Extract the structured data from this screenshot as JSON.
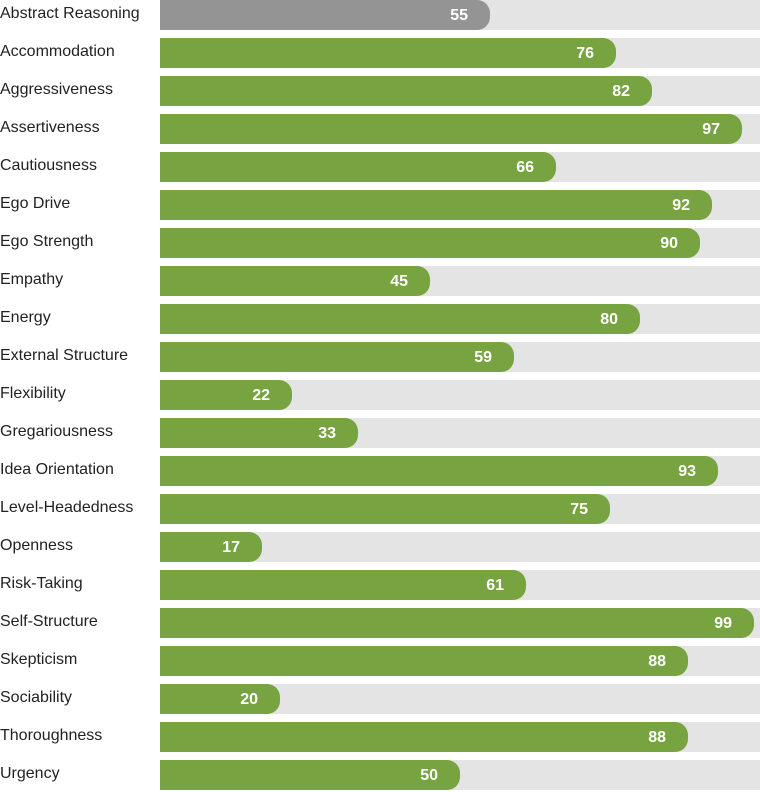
{
  "chart_data": {
    "type": "bar",
    "orientation": "horizontal",
    "categories": [
      "Abstract Reasoning",
      "Accommodation",
      "Aggressiveness",
      "Assertiveness",
      "Cautiousness",
      "Ego Drive",
      "Ego Strength",
      "Empathy",
      "Energy",
      "External Structure",
      "Flexibility",
      "Gregariousness",
      "Idea Orientation",
      "Level-Headedness",
      "Openness",
      "Risk-Taking",
      "Self-Structure",
      "Skepticism",
      "Sociability",
      "Thoroughness",
      "Urgency"
    ],
    "values": [
      55,
      76,
      82,
      97,
      66,
      92,
      90,
      45,
      80,
      59,
      22,
      33,
      93,
      75,
      17,
      61,
      99,
      88,
      20,
      88,
      50
    ],
    "xlim": [
      0,
      100
    ],
    "grid": false,
    "colors": {
      "highlight": "#949494",
      "bar": "#77a441",
      "track": "#e4e4e4"
    },
    "highlighted_category": "Abstract Reasoning"
  }
}
